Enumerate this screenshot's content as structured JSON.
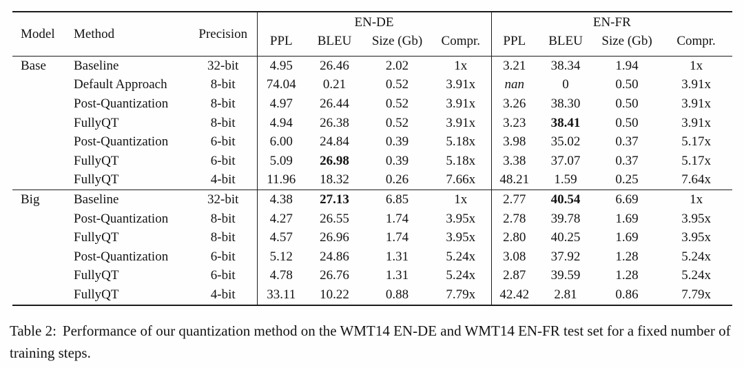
{
  "table": {
    "header": {
      "model": "Model",
      "method": "Method",
      "precision": "Precision",
      "groups": [
        {
          "label": "EN-DE"
        },
        {
          "label": "EN-FR"
        }
      ],
      "metrics": [
        "PPL",
        "BLEU",
        "Size (Gb)",
        "Compr."
      ]
    },
    "sections": [
      {
        "model": "Base",
        "rows": [
          {
            "method": "Baseline",
            "precision": "32-bit",
            "values": [
              "4.95",
              "26.46",
              "2.02",
              "1x",
              "3.21",
              "38.34",
              "1.94",
              "1x"
            ]
          },
          {
            "method": "Default Approach",
            "precision": "8-bit",
            "values": [
              "74.04",
              "0.21",
              "0.52",
              "3.91x",
              {
                "t": "nan",
                "i": true
              },
              "0",
              "0.50",
              "3.91x"
            ]
          },
          {
            "method": "Post-Quantization",
            "precision": "8-bit",
            "values": [
              "4.97",
              "26.44",
              "0.52",
              "3.91x",
              "3.26",
              "38.30",
              "0.50",
              "3.91x"
            ]
          },
          {
            "method": "FullyQT",
            "precision": "8-bit",
            "values": [
              "4.94",
              "26.38",
              "0.52",
              "3.91x",
              "3.23",
              {
                "t": "38.41",
                "b": true
              },
              "0.50",
              "3.91x"
            ]
          },
          {
            "method": "Post-Quantization",
            "precision": "6-bit",
            "values": [
              "6.00",
              "24.84",
              "0.39",
              "5.18x",
              "3.98",
              "35.02",
              "0.37",
              "5.17x"
            ]
          },
          {
            "method": "FullyQT",
            "precision": "6-bit",
            "values": [
              "5.09",
              {
                "t": "26.98",
                "b": true
              },
              "0.39",
              "5.18x",
              "3.38",
              "37.07",
              "0.37",
              "5.17x"
            ]
          },
          {
            "method": "FullyQT",
            "precision": "4-bit",
            "values": [
              "11.96",
              "18.32",
              "0.26",
              "7.66x",
              "48.21",
              "1.59",
              "0.25",
              "7.64x"
            ]
          }
        ]
      },
      {
        "model": "Big",
        "rows": [
          {
            "method": "Baseline",
            "precision": "32-bit",
            "values": [
              "4.38",
              {
                "t": "27.13",
                "b": true
              },
              "6.85",
              "1x",
              "2.77",
              {
                "t": "40.54",
                "b": true
              },
              "6.69",
              "1x"
            ]
          },
          {
            "method": "Post-Quantization",
            "precision": "8-bit",
            "values": [
              "4.27",
              "26.55",
              "1.74",
              "3.95x",
              "2.78",
              "39.78",
              "1.69",
              "3.95x"
            ]
          },
          {
            "method": "FullyQT",
            "precision": "8-bit",
            "values": [
              "4.57",
              "26.96",
              "1.74",
              "3.95x",
              "2.80",
              "40.25",
              "1.69",
              "3.95x"
            ]
          },
          {
            "method": "Post-Quantization",
            "precision": "6-bit",
            "values": [
              "5.12",
              "24.86",
              "1.31",
              "5.24x",
              "3.08",
              "37.92",
              "1.28",
              "5.24x"
            ]
          },
          {
            "method": "FullyQT",
            "precision": "6-bit",
            "values": [
              "4.78",
              "26.76",
              "1.31",
              "5.24x",
              "2.87",
              "39.59",
              "1.28",
              "5.24x"
            ]
          },
          {
            "method": "FullyQT",
            "precision": "4-bit",
            "values": [
              "33.11",
              "10.22",
              "0.88",
              "7.79x",
              "42.42",
              "2.81",
              "0.86",
              "7.79x"
            ]
          }
        ]
      }
    ]
  },
  "caption": {
    "label": "Table 2:",
    "text": "Performance of our quantization method on the WMT14 EN-DE and WMT14 EN-FR test set for a fixed number of training steps."
  }
}
